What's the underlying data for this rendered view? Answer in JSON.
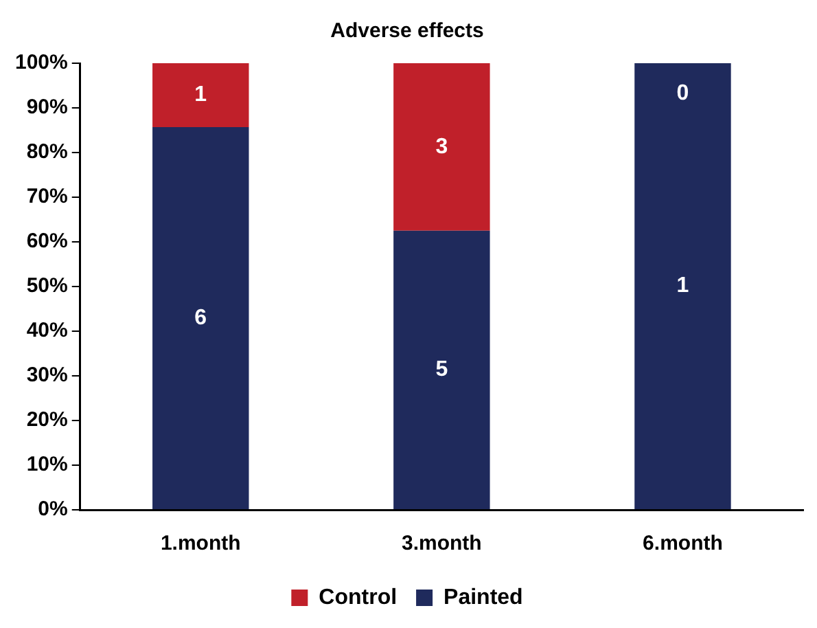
{
  "chart_data": {
    "type": "bar",
    "title": "Adverse effects",
    "categories": [
      "1.month",
      "3.month",
      "6.month"
    ],
    "stacked": true,
    "series": [
      {
        "name": "Painted",
        "color": "#1f2a5c",
        "values": [
          85.7,
          62.5,
          100
        ]
      },
      {
        "name": "Control",
        "color": "#c0202a",
        "values": [
          14.3,
          37.5,
          0
        ]
      }
    ],
    "annotations": [
      "6",
      "1",
      "5",
      "3",
      "1",
      "0"
    ],
    "ylim": [
      0,
      100
    ],
    "yticks": [
      {
        "value": 0,
        "label": "0%"
      },
      {
        "value": 10,
        "label": "10%"
      },
      {
        "value": 20,
        "label": "20%"
      },
      {
        "value": 30,
        "label": "30%"
      },
      {
        "value": 40,
        "label": "40%"
      },
      {
        "value": 50,
        "label": "50%"
      },
      {
        "value": 60,
        "label": "60%"
      },
      {
        "value": 70,
        "label": "70%"
      },
      {
        "value": 80,
        "label": "80%"
      },
      {
        "value": 90,
        "label": "90%"
      },
      {
        "value": 100,
        "label": "100%"
      }
    ],
    "grid": false,
    "legend": "bottom"
  }
}
